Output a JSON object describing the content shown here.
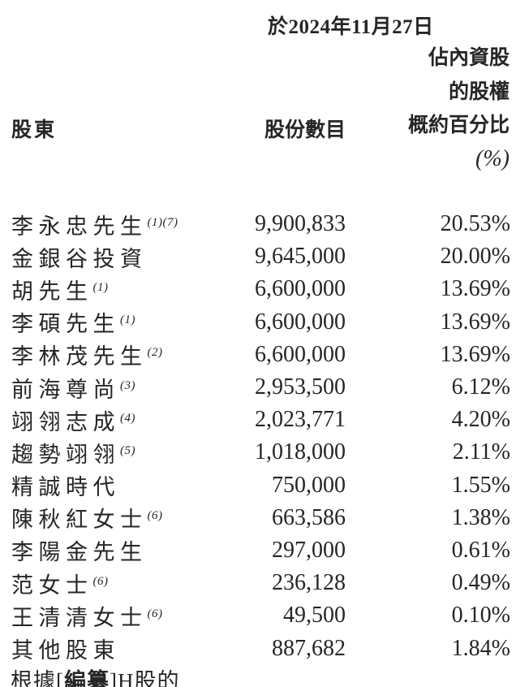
{
  "page": {
    "date_header": "於2024年11月27日",
    "columns": {
      "shareholder": "股東",
      "shares": "股份數目",
      "percent_line1": "佔內資股",
      "percent_line2": "的股權",
      "percent_line3": "概約百分比",
      "percent_unit": "(%)"
    },
    "rows": [
      {
        "name": "李永忠先生",
        "note": "(1)(7)",
        "shares": "9,900,833",
        "pct": "20.53%"
      },
      {
        "name": "金銀谷投資",
        "note": "",
        "shares": "9,645,000",
        "pct": "20.00%"
      },
      {
        "name": "胡先生",
        "note": "(1)",
        "shares": "6,600,000",
        "pct": "13.69%"
      },
      {
        "name": "李碩先生",
        "note": "(1)",
        "shares": "6,600,000",
        "pct": "13.69%"
      },
      {
        "name": "李林茂先生",
        "note": "(2)",
        "shares": "6,600,000",
        "pct": "13.69%"
      },
      {
        "name": "前海尊尚",
        "note": "(3)",
        "shares": "2,953,500",
        "pct": "6.12%"
      },
      {
        "name": "翊翎志成",
        "note": "(4)",
        "shares": "2,023,771",
        "pct": "4.20%"
      },
      {
        "name": "趨勢翊翎",
        "note": "(5)",
        "shares": "1,018,000",
        "pct": "2.11%"
      },
      {
        "name": "精誠時代",
        "note": "",
        "shares": "750,000",
        "pct": "1.55%"
      },
      {
        "name": "陳秋紅女士",
        "note": "(6)",
        "shares": "663,586",
        "pct": "1.38%"
      },
      {
        "name": "李陽金先生",
        "note": "",
        "shares": "297,000",
        "pct": "0.61%"
      },
      {
        "name": "范女士",
        "note": "(6)",
        "shares": "236,128",
        "pct": "0.49%"
      },
      {
        "name": "王清清女士",
        "note": "(6)",
        "shares": "49,500",
        "pct": "0.10%"
      },
      {
        "name": "其他股東",
        "note": "",
        "shares": "887,682",
        "pct": "1.84%"
      }
    ],
    "footer_fragment": {
      "prefix": "根據[",
      "redacted": "編纂",
      "suffix": "]H股的"
    }
  },
  "colors": {
    "text": "#262626",
    "background": "#ffffff"
  }
}
